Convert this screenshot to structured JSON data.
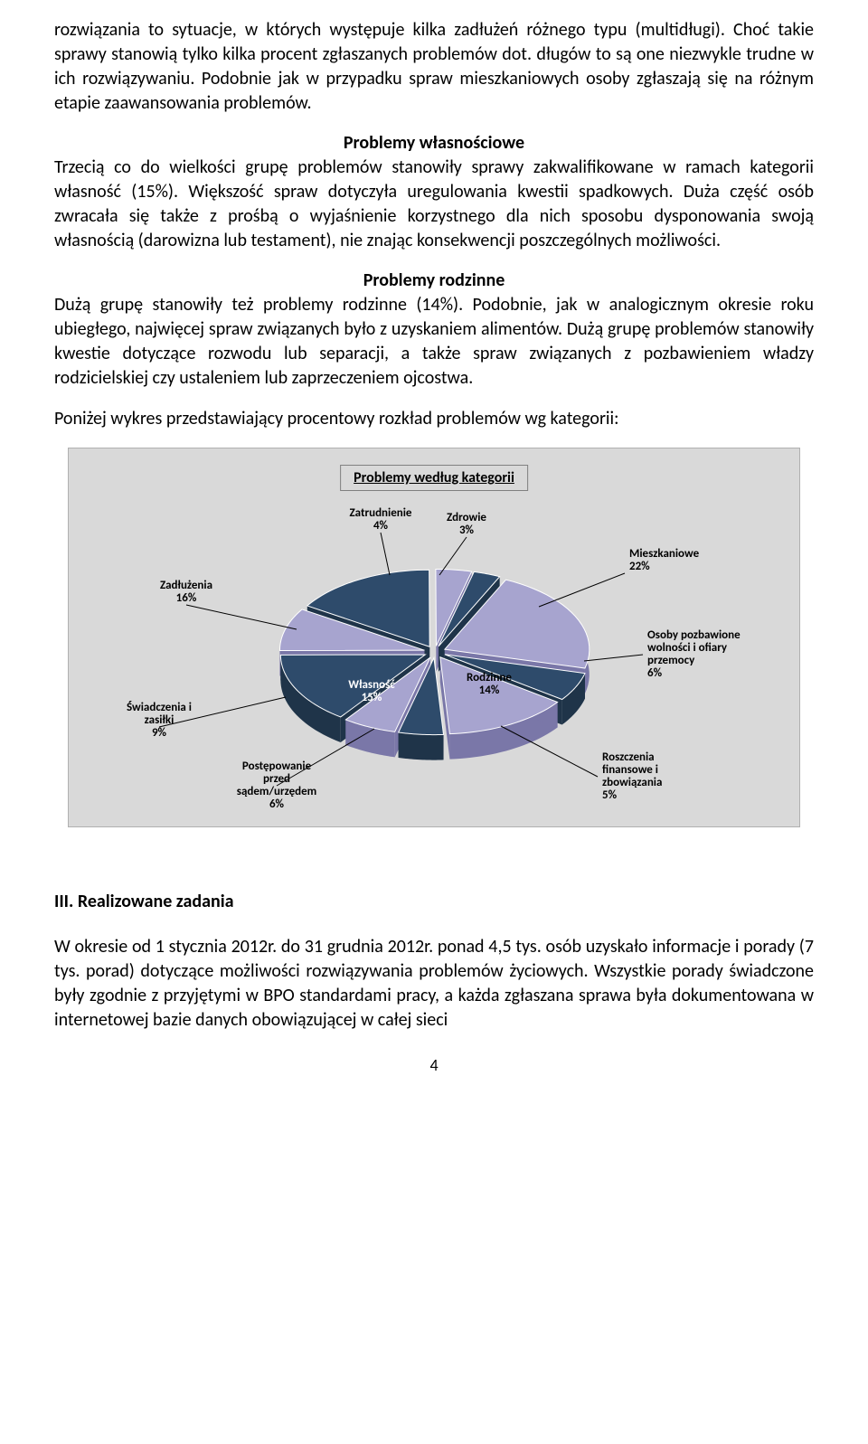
{
  "paragraphs": {
    "p1": "rozwiązania to sytuacje, w których występuje kilka zadłużeń różnego typu (multidługi). Choć takie sprawy stanowią tylko kilka procent zgłaszanych problemów dot. długów to  są one niezwykle trudne w ich rozwiązywaniu. Podobnie jak w przypadku spraw mieszkaniowych osoby zgłaszają się na różnym etapie zaawansowania problemów.",
    "p2_title": "Problemy własnościowe",
    "p2": "Trzecią co do wielkości grupę problemów stanowiły sprawy zakwalifikowane w ramach kategorii własność (15%). Większość spraw dotyczyła uregulowania kwestii spadkowych. Duża część osób zwracała się także z prośbą o wyjaśnienie korzystnego dla nich sposobu dysponowania swoją własnością (darowizna lub testament), nie znając  konsekwencji poszczególnych możliwości.",
    "p3_title": "Problemy rodzinne",
    "p3": "Dużą grupę stanowiły też problemy rodzinne (14%). Podobnie, jak w analogicznym okresie roku ubiegłego, najwięcej spraw związanych było z uzyskaniem alimentów. Dużą grupę problemów stanowiły kwestie dotyczące rozwodu lub separacji, a także spraw związanych z pozbawieniem władzy rodzicielskiej czy  ustaleniem lub zaprzeczeniem ojcostwa.",
    "p4": "Poniżej wykres przedstawiający procentowy rozkład problemów wg kategorii:",
    "h3": "III. Realizowane zadania",
    "p5": "W okresie od 1 stycznia 2012r. do 31 grudnia 2012r.  ponad 4,5 tys. osób uzyskało informacje i porady (7 tys. porad) dotyczące możliwości rozwiązywania problemów życiowych. Wszystkie porady świadczone były zgodnie z przyjętymi w BPO standardami pracy, a każda  zgłaszana sprawa była dokumentowana w internetowej bazie danych obowiązującej w całej sieci"
  },
  "chart": {
    "title": "Problemy według kategorii",
    "type": "pie-3d",
    "background_color": "#d9d9d9",
    "slices": [
      {
        "label": "Mieszkaniowe",
        "pct": "22%",
        "value": 22,
        "color": "#a7a4cf"
      },
      {
        "label": "Osoby pozbawione\nwolności i ofiary\nprzemocy",
        "pct": "6%",
        "value": 6,
        "color": "#2e4b6b"
      },
      {
        "label": "Rodzinne",
        "pct": "14%",
        "value": 14,
        "color": "#a7a4cf"
      },
      {
        "label": "Roszczenia\nfinansowe i\nzbowiązania",
        "pct": "5%",
        "value": 5,
        "color": "#2e4b6b"
      },
      {
        "label": "Postępowanie\nprzed\nsądem/urzędem",
        "pct": "6%",
        "value": 6,
        "color": "#a7a4cf"
      },
      {
        "label": "Własność",
        "pct": "15%",
        "value": 15,
        "color": "#2e4b6b"
      },
      {
        "label": "Świadczenia i\nzasiłki",
        "pct": "9%",
        "value": 9,
        "color": "#a7a4cf"
      },
      {
        "label": "Zadłużenia",
        "pct": "16%",
        "value": 16,
        "color": "#2e4b6b"
      },
      {
        "label": "Zatrudnienie",
        "pct": "4%",
        "value": 4,
        "color": "#a7a4cf"
      },
      {
        "label": "Zdrowie",
        "pct": "3%",
        "value": 3,
        "color": "#2e4b6b"
      }
    ],
    "label_fontsize": 13,
    "title_fontsize": 16,
    "slice_dark": "#2e4b6b",
    "slice_light": "#a7a4cf",
    "side_dark": "#1f3449",
    "side_light": "#7a77a8"
  },
  "page_number": "4"
}
